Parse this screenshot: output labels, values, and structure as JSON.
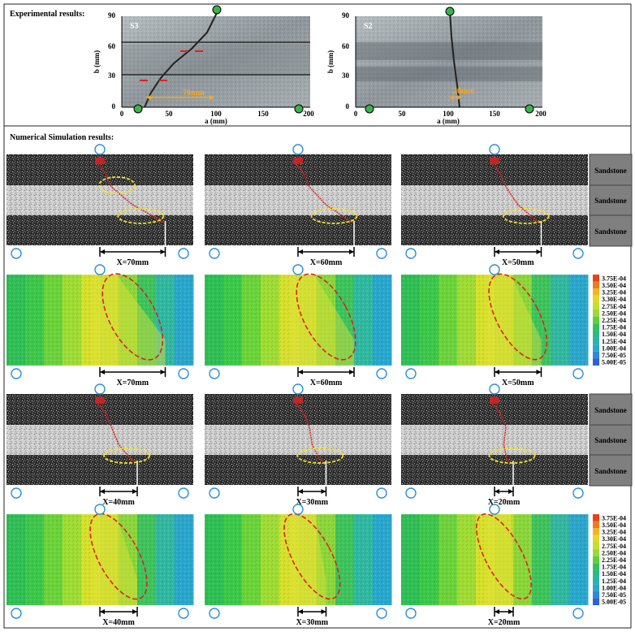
{
  "experimental": {
    "heading": "Experimental results:",
    "plots": [
      {
        "id": "S3",
        "x_label": "a (mm)",
        "y_label": "b (mm)",
        "x_ticks": [
          "0",
          "50",
          "100",
          "150",
          "200"
        ],
        "y_ticks": [
          "0",
          "30",
          "60",
          "90"
        ],
        "annotation": "70mm"
      },
      {
        "id": "S2",
        "x_label": "a (mm)",
        "y_label": "b (mm)",
        "x_ticks": [
          "0",
          "50",
          "100",
          "150",
          "200"
        ],
        "y_ticks": [
          "0",
          "30",
          "60",
          "90"
        ],
        "annotation": "20mm"
      }
    ]
  },
  "numerical": {
    "heading": "Numerical Simulation results:",
    "rock_labels": [
      "Sandstone",
      "Sandstone",
      "Sandstone"
    ],
    "legend_values": [
      "3.75E-04",
      "3.50E-04",
      "3.25E-04",
      "3.30E-04",
      "2.75E-04",
      "2.50E-04",
      "2.25E-04",
      "1.75E-04",
      "1.50E-04",
      "1.25E-04",
      "1.00E-04",
      "7.50E-05",
      "5.00E-05"
    ],
    "legend_colors": [
      "#e8421a",
      "#f07a1c",
      "#f5b41e",
      "#e6d82a",
      "#c4df2e",
      "#9bd83a",
      "#5fcf3c",
      "#2fc25a",
      "#2bb98a",
      "#28b3b0",
      "#2aa6cf",
      "#2d89dd",
      "#2f5fd8"
    ],
    "rows": [
      {
        "type": "particles",
        "panels": [
          {
            "dist": "X=70mm",
            "x_mm": 70
          },
          {
            "dist": "X=60mm",
            "x_mm": 60
          },
          {
            "dist": "X=50mm",
            "x_mm": 50
          }
        ]
      },
      {
        "type": "contour",
        "panels": [
          {
            "dist": "X=70mm",
            "x_mm": 70
          },
          {
            "dist": "X=60mm",
            "x_mm": 60
          },
          {
            "dist": "X=50mm",
            "x_mm": 50
          }
        ]
      },
      {
        "type": "particles",
        "panels": [
          {
            "dist": "X=40mm",
            "x_mm": 40
          },
          {
            "dist": "X=30mm",
            "x_mm": 30
          },
          {
            "dist": "X=20mm",
            "x_mm": 20
          }
        ]
      },
      {
        "type": "contour",
        "panels": [
          {
            "dist": "X=40mm",
            "x_mm": 40
          },
          {
            "dist": "X=30mm",
            "x_mm": 30
          },
          {
            "dist": "X=20mm",
            "x_mm": 20
          }
        ]
      }
    ]
  }
}
